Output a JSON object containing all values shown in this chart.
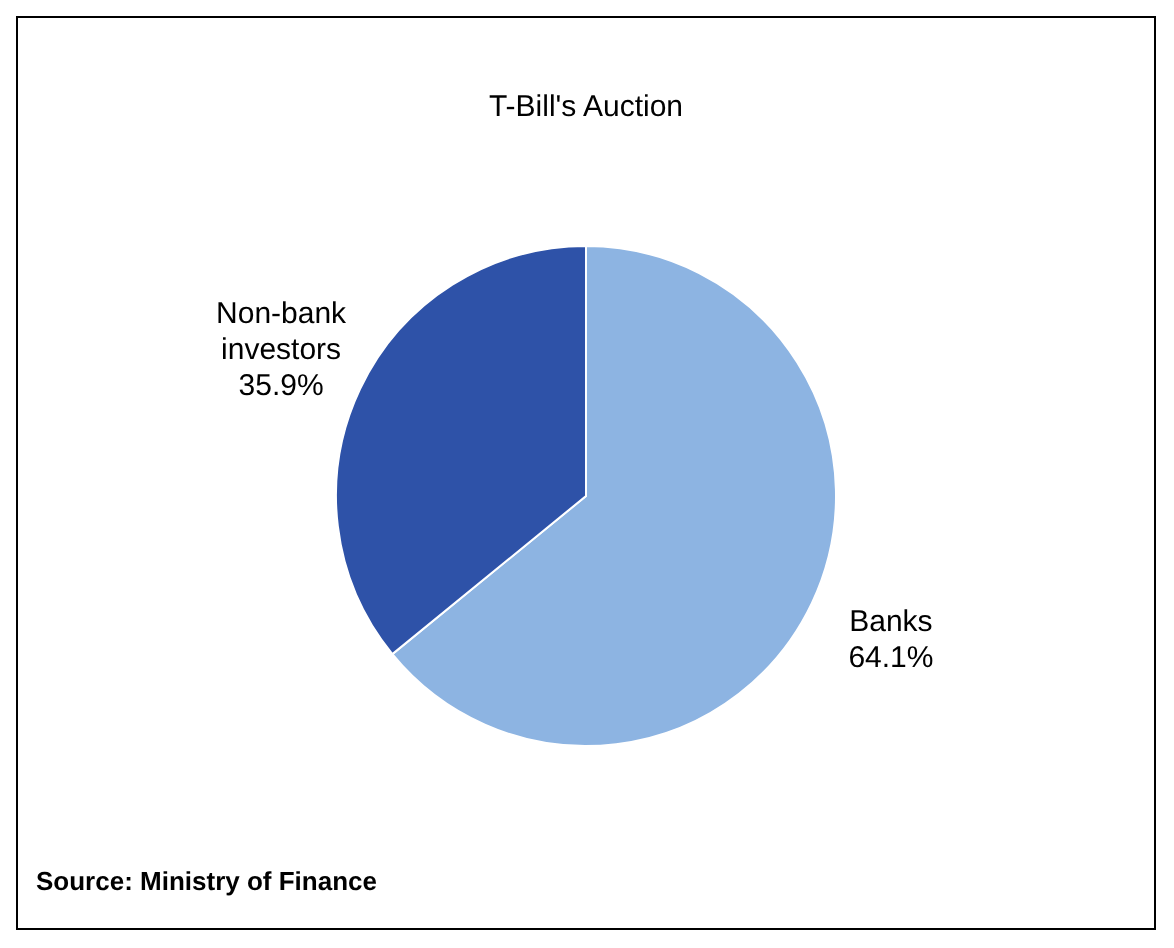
{
  "chart_data": {
    "type": "pie",
    "title": "T-Bill's Auction",
    "categories": [
      "Banks",
      "Non-bank investors"
    ],
    "values": [
      64.1,
      35.9
    ],
    "colors": [
      "#8db4e2",
      "#2e52a8"
    ],
    "value_labels": [
      "64.1%",
      "35.9%"
    ],
    "annotations": [
      "Source: Ministry of Finance"
    ]
  }
}
